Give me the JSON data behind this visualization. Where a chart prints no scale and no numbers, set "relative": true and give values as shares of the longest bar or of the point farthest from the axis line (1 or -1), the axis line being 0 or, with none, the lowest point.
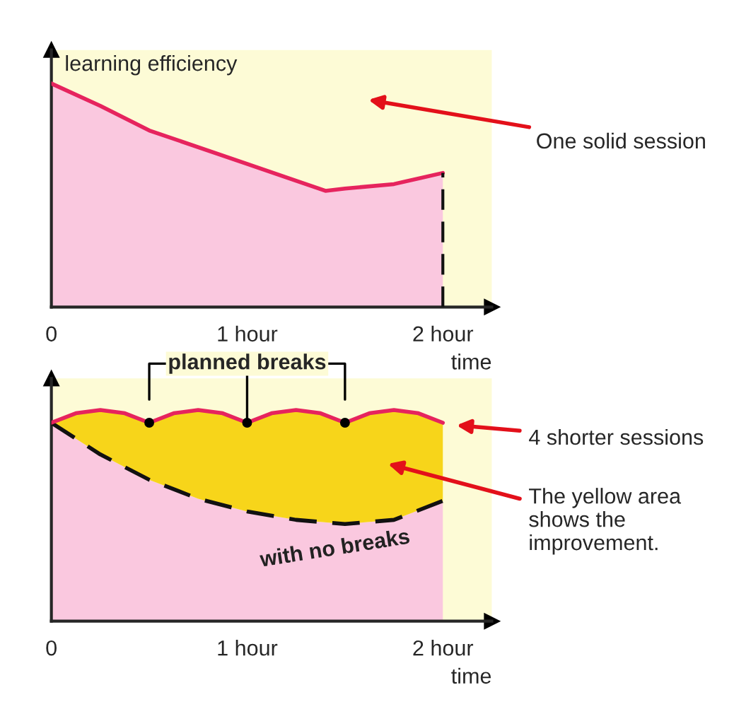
{
  "chart_data": [
    {
      "type": "area",
      "xlabel": "time",
      "ylabel": "learning efficiency",
      "relative": true,
      "xlim": [
        0,
        2.25
      ],
      "xticks": [
        {
          "value": 0,
          "label": "0"
        },
        {
          "value": 1,
          "label": "1 hour"
        },
        {
          "value": 2,
          "label": "2 hour"
        }
      ],
      "ref_lines": [
        {
          "axis": "x",
          "value": 2,
          "line_style": "dashed",
          "color": "#111111"
        }
      ],
      "annotations": [
        "One solid session"
      ],
      "series": [
        {
          "color": "#e6245e",
          "line_style": "solid",
          "colors": [
            "#fac8df",
            "#fac8df",
            "#fac8df",
            "#fac8df",
            "#fac8df",
            "#fac8df",
            "#fac8df",
            "#fac8df"
          ],
          "x": [
            0,
            0.25,
            0.5,
            1,
            1.4,
            1.5,
            1.75,
            2
          ],
          "values": [
            1,
            0.9,
            0.79,
            0.64,
            0.52,
            0.53,
            0.55,
            0.6
          ]
        }
      ]
    },
    {
      "type": "area",
      "relative": true,
      "xlim": [
        0,
        2.25
      ],
      "xlabel": "time",
      "xticks": [
        {
          "value": 0,
          "label": "0"
        },
        {
          "value": 1,
          "label": "1 hour"
        },
        {
          "value": 2,
          "label": "2 hour"
        }
      ],
      "annotations": [
        "4 shorter sessions",
        "The yellow area shows the improvement."
      ],
      "series": [
        {
          "name": "with no breaks",
          "color": "#111111",
          "line_style": "dashed",
          "colors": [
            "#fac8df",
            "#fac8df",
            "#fac8df",
            "#fac8df",
            "#fac8df",
            "#fac8df",
            "#fac8df",
            "#fac8df",
            "#fac8df"
          ],
          "x": [
            0,
            0.25,
            0.5,
            0.75,
            1,
            1.25,
            1.5,
            1.75,
            2
          ],
          "values": [
            0.94,
            0.79,
            0.67,
            0.58,
            0.52,
            0.48,
            0.46,
            0.48,
            0.57
          ]
        },
        {
          "name": "planned breaks",
          "color": "#e6245e",
          "line_style": "solid",
          "colors": [
            "#f7d51a",
            "#f7d51a",
            "#f7d51a",
            "#f7d51a",
            "#f7d51a",
            "#f7d51a",
            "#f7d51a",
            "#f7d51a",
            "#f7d51a",
            "#f7d51a",
            "#f7d51a",
            "#f7d51a",
            "#f7d51a",
            "#f7d51a",
            "#f7d51a",
            "#f7d51a",
            "#f7d51a"
          ],
          "x": [
            0,
            0.125,
            0.25,
            0.375,
            0.5,
            0.625,
            0.75,
            0.875,
            1,
            1.125,
            1.25,
            1.375,
            1.5,
            1.625,
            1.75,
            1.875,
            2
          ],
          "values": [
            0.94,
            0.985,
            1,
            0.985,
            0.94,
            0.985,
            1,
            0.985,
            0.94,
            0.985,
            1,
            0.985,
            0.94,
            0.985,
            1,
            0.985,
            0.94
          ]
        }
      ]
    }
  ]
}
